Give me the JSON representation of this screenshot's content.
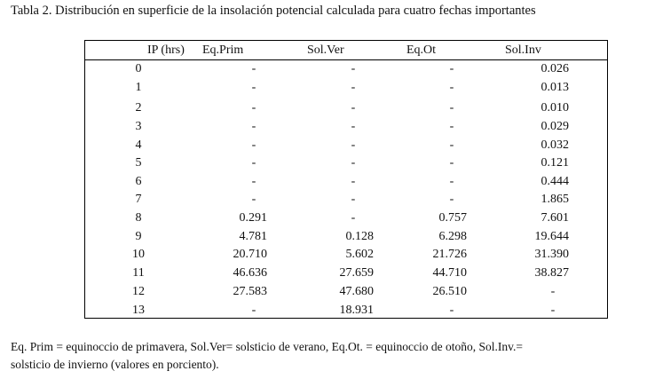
{
  "title": "Tabla 2. Distribución en superficie de la insolación potencial calculada para cuatro fechas importantes",
  "headers": [
    "IP (hrs)",
    "Eq.Prim",
    "Sol.Ver",
    "Eq.Ot",
    "Sol.Inv"
  ],
  "rows": [
    [
      "0",
      "-",
      "-",
      "-",
      "0.026"
    ],
    [
      "1",
      "-",
      "-",
      "-",
      "0.013"
    ],
    [
      "2",
      "-",
      "-",
      "-",
      "0.010"
    ],
    [
      "3",
      "-",
      "-",
      "-",
      "0.029"
    ],
    [
      "4",
      "-",
      "-",
      "-",
      "0.032"
    ],
    [
      "5",
      "-",
      "-",
      "-",
      "0.121"
    ],
    [
      "6",
      "-",
      "-",
      "-",
      "0.444"
    ],
    [
      "7",
      "-",
      "-",
      "-",
      "1.865"
    ],
    [
      "8",
      "0.291",
      "-",
      "0.757",
      "7.601"
    ],
    [
      "9",
      "4.781",
      "0.128",
      "6.298",
      "19.644"
    ],
    [
      "10",
      "20.710",
      "5.602",
      "21.726",
      "31.390"
    ],
    [
      "11",
      "46.636",
      "27.659",
      "44.710",
      "38.827"
    ],
    [
      "12",
      "27.583",
      "47.680",
      "26.510",
      "-"
    ],
    [
      "13",
      "-",
      "18.931",
      "-",
      "-"
    ]
  ],
  "footnote_line1": "Eq. Prim = equinoccio de primavera, Sol.Ver= solsticio de verano, Eq.Ot. = equinoccio de otoño, Sol.Inv.=",
  "footnote_line2": "solsticio de invierno (valores en porciento)."
}
